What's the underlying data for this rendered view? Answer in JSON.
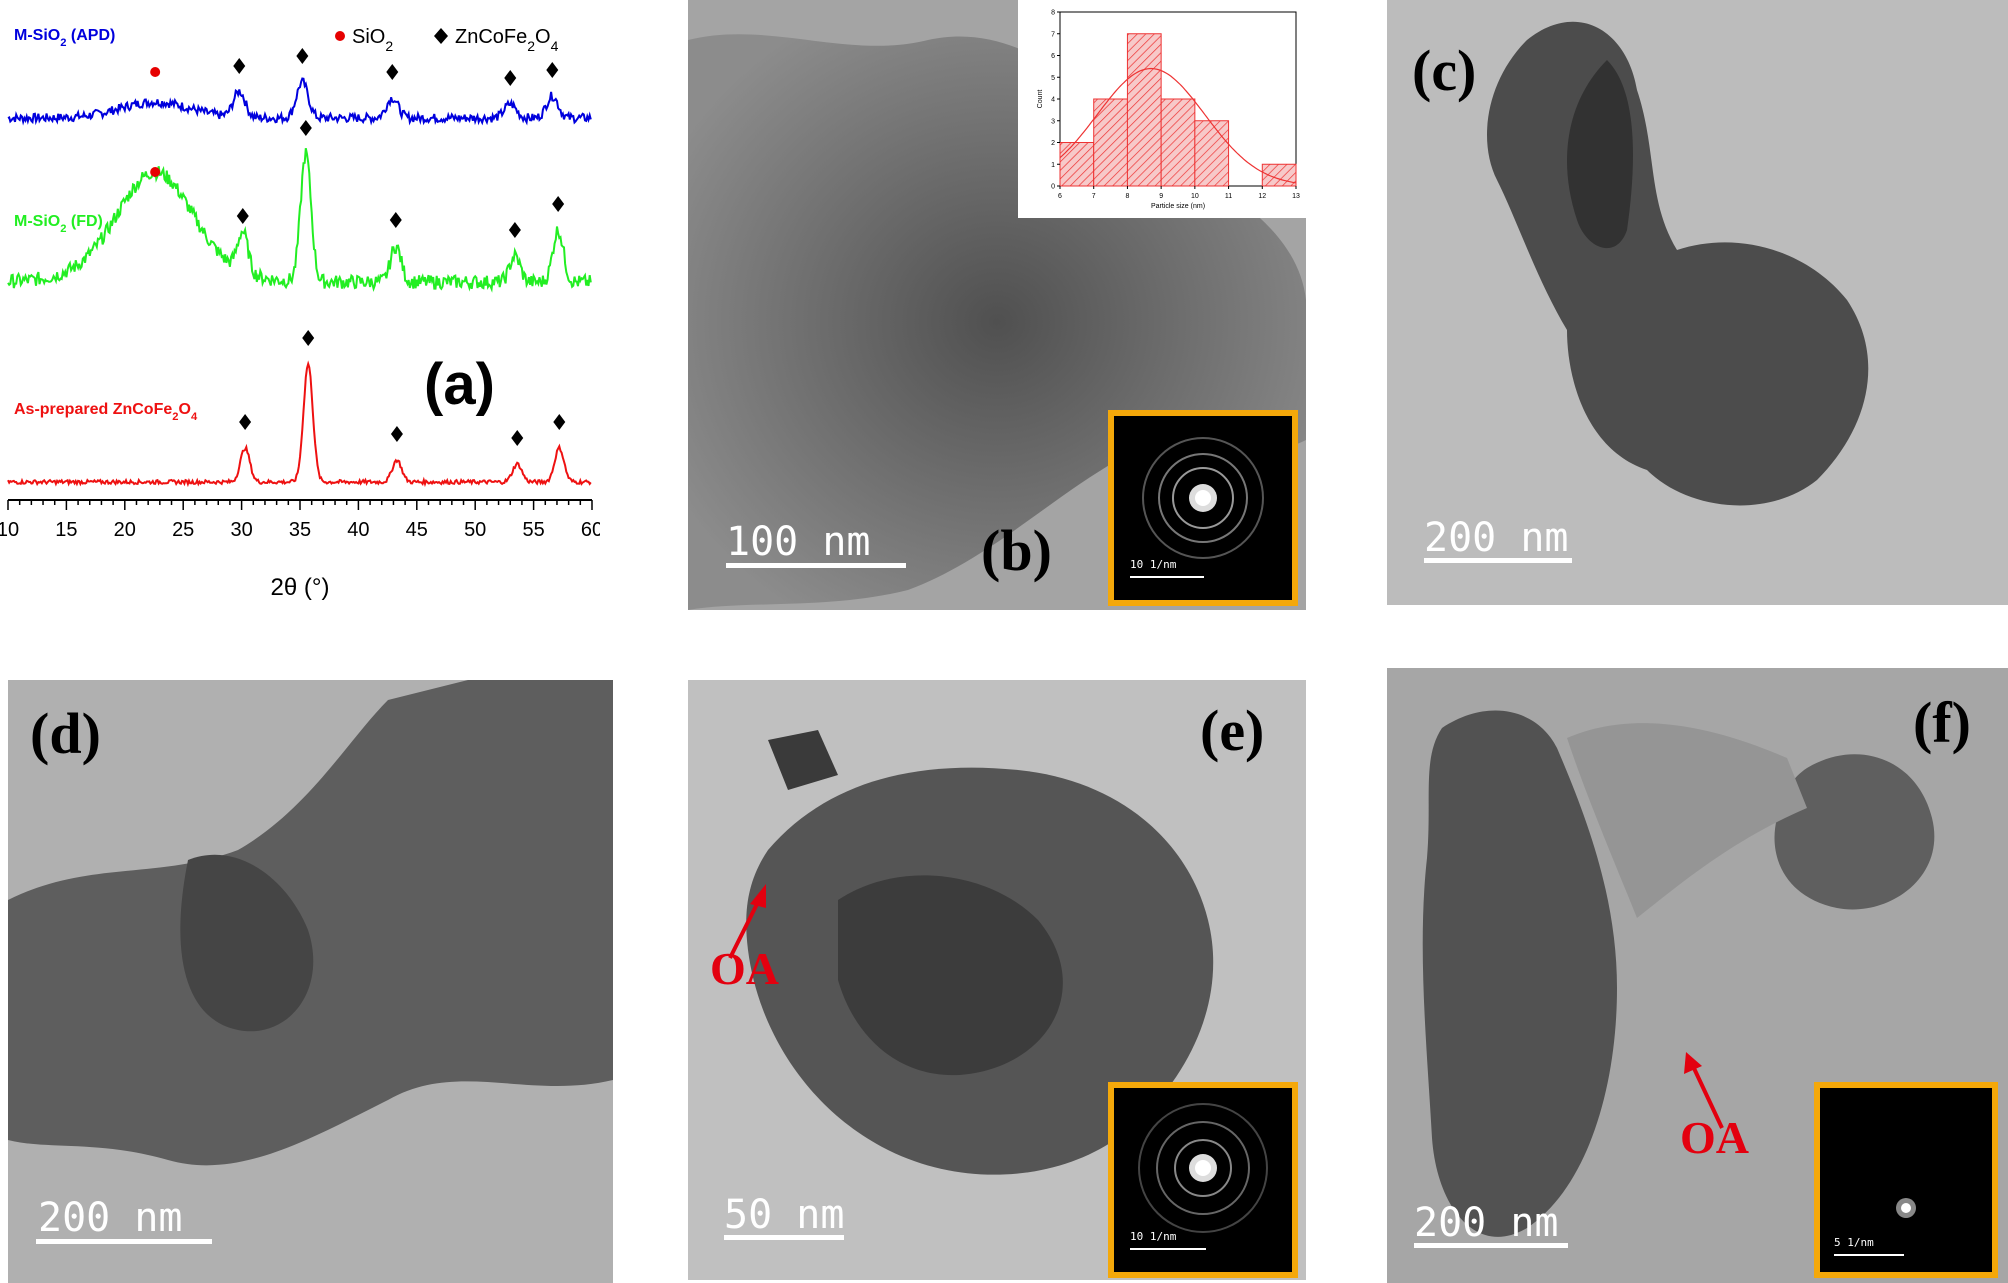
{
  "panels": {
    "a": {
      "letter": "(a)"
    },
    "b": {
      "letter": "(b)",
      "scale": "100 nm",
      "saed": "10 1/nm"
    },
    "c": {
      "letter": "(c)",
      "scale": "200 nm"
    },
    "d": {
      "letter": "(d)",
      "scale": "200 nm"
    },
    "e": {
      "letter": "(e)",
      "scale": "50 nm",
      "saed": "10 1/nm",
      "annotation": "OA"
    },
    "f": {
      "letter": "(f)",
      "scale": "200 nm",
      "saed": "5 1/nm",
      "annotation": "OA"
    }
  },
  "chart_data": [
    {
      "type": "line",
      "title": "",
      "xlabel": "2θ (°)",
      "ylabel": "",
      "xlim": [
        10,
        60
      ],
      "xticks": [
        10,
        15,
        20,
        25,
        30,
        35,
        40,
        45,
        50,
        55,
        60
      ],
      "grid": false,
      "legend": {
        "placement": "top-right",
        "entries": [
          {
            "label": "SiO2",
            "marker": "circle",
            "color": "#e60000"
          },
          {
            "label": "ZnCoFe2O4",
            "marker": "diamond",
            "color": "#000000"
          }
        ]
      },
      "series": [
        {
          "name": "M-SiO2 (APD)",
          "color": "#0000dd",
          "peaks_2theta": [
            22.6,
            29.8,
            35.2,
            42.9,
            53.0,
            56.6
          ],
          "peak_markers": [
            "circle",
            "diamond",
            "diamond",
            "diamond",
            "diamond",
            "diamond"
          ]
        },
        {
          "name": "M-SiO2 (FD)",
          "color": "#22ee22",
          "peaks_2theta": [
            22.6,
            30.1,
            35.5,
            43.2,
            53.4,
            57.1
          ],
          "peak_markers": [
            "circle",
            "diamond",
            "diamond",
            "diamond",
            "diamond",
            "diamond"
          ]
        },
        {
          "name": "As-prepared ZnCoFe2O4",
          "color": "#ee1111",
          "peaks_2theta": [
            30.3,
            35.7,
            43.3,
            53.6,
            57.2
          ],
          "peak_markers": [
            "diamond",
            "diamond",
            "diamond",
            "diamond",
            "diamond"
          ]
        }
      ]
    },
    {
      "type": "bar",
      "title": "",
      "xlabel": "Particle size (nm)",
      "ylabel": "Count",
      "xlim": [
        6,
        13
      ],
      "ylim": [
        0,
        8
      ],
      "xticks": [
        6,
        7,
        8,
        9,
        10,
        11,
        12,
        13
      ],
      "yticks": [
        0,
        1,
        2,
        3,
        4,
        5,
        6,
        7,
        8
      ],
      "bin_edges": [
        6,
        7,
        8,
        9,
        10,
        11,
        12,
        13
      ],
      "counts": [
        2,
        4,
        7,
        4,
        3,
        0,
        1
      ],
      "fit": "normal",
      "fit_peak": {
        "x": 8.7,
        "y": 5.4
      }
    }
  ]
}
